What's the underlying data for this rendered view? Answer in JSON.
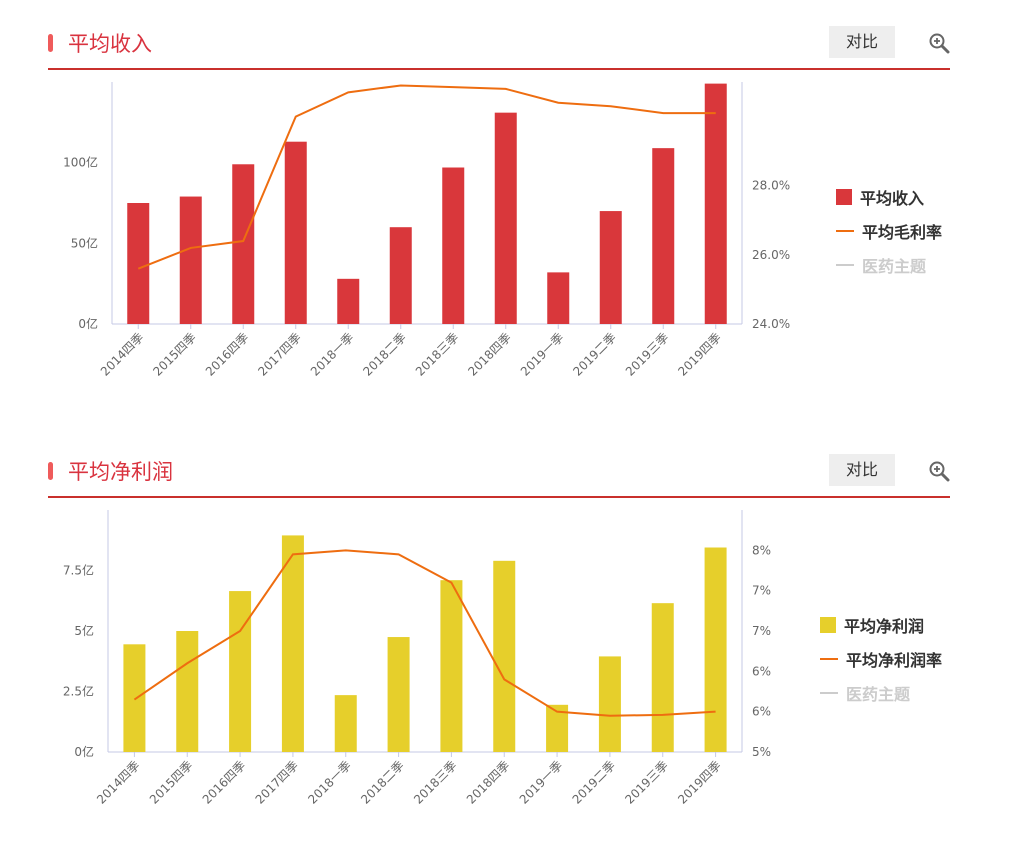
{
  "colors": {
    "revenue_bar": "#d9373b",
    "profit_bar": "#e6cf2b",
    "line": "#ee6d10",
    "title_red": "#d9333f",
    "rule": "#c9302c",
    "axis": "#c6c9e6",
    "disabled": "#cccccc"
  },
  "panels": [
    {
      "title": "平均收入",
      "compare_label": "对比",
      "zoom_icon": "zoom-in-icon",
      "legend": [
        {
          "label": "平均收入",
          "kind": "bar"
        },
        {
          "label": "平均毛利率",
          "kind": "line"
        },
        {
          "label": "医药主题",
          "kind": "line-disabled"
        }
      ],
      "left_ticks": [
        "0亿",
        "50亿",
        "100亿"
      ],
      "right_ticks": [
        "24.0%",
        "26.0%",
        "28.0%"
      ]
    },
    {
      "title": "平均净利润",
      "compare_label": "对比",
      "zoom_icon": "zoom-in-icon",
      "legend": [
        {
          "label": "平均净利润",
          "kind": "bar"
        },
        {
          "label": "平均净利润率",
          "kind": "line"
        },
        {
          "label": "医药主题",
          "kind": "line-disabled"
        }
      ],
      "left_ticks": [
        "0亿",
        "2.5亿",
        "5亿",
        "7.5亿"
      ],
      "right_ticks": [
        "5%",
        "6%",
        "6%",
        "7%",
        "7%",
        "8%"
      ]
    }
  ],
  "chart_data": [
    {
      "type": "bar",
      "title": "平均收入",
      "categories": [
        "2014四季",
        "2015四季",
        "2016四季",
        "2017四季",
        "2018一季",
        "2018二季",
        "2018三季",
        "2018四季",
        "2019一季",
        "2019二季",
        "2019三季",
        "2019四季"
      ],
      "series": [
        {
          "name": "平均收入",
          "type": "bar",
          "axis": "left",
          "unit": "亿",
          "values": [
            75,
            79,
            99,
            113,
            28,
            60,
            97,
            131,
            32,
            70,
            109,
            149
          ]
        },
        {
          "name": "平均毛利率",
          "type": "line",
          "axis": "right",
          "unit": "%",
          "values": [
            25.6,
            26.2,
            26.4,
            30.0,
            30.7,
            30.9,
            30.85,
            30.8,
            30.4,
            30.3,
            30.1,
            30.1
          ]
        }
      ],
      "y_left": {
        "min": 0,
        "max": 150,
        "ticks": [
          0,
          50,
          100
        ]
      },
      "y_right": {
        "min": 24.0,
        "max": 31.0,
        "ticks": [
          24.0,
          26.0,
          28.0
        ]
      },
      "grid": false,
      "legend_position": "right"
    },
    {
      "type": "bar",
      "title": "平均净利润",
      "categories": [
        "2014四季",
        "2015四季",
        "2016四季",
        "2017四季",
        "2018一季",
        "2018二季",
        "2018三季",
        "2018四季",
        "2019一季",
        "2019二季",
        "2019三季",
        "2019四季"
      ],
      "series": [
        {
          "name": "平均净利润",
          "type": "bar",
          "axis": "left",
          "unit": "亿",
          "values": [
            4.45,
            5.0,
            6.65,
            8.95,
            2.35,
            4.75,
            7.1,
            7.9,
            1.95,
            3.95,
            6.15,
            8.45
          ]
        },
        {
          "name": "平均净利润率",
          "type": "line",
          "axis": "right",
          "unit": "%",
          "values": [
            5.65,
            6.1,
            6.5,
            7.45,
            7.5,
            7.45,
            7.1,
            5.9,
            5.5,
            5.45,
            5.46,
            5.5
          ]
        }
      ],
      "y_left": {
        "min": 0,
        "max": 10,
        "ticks": [
          0,
          2.5,
          5,
          7.5
        ]
      },
      "y_right": {
        "min": 5.0,
        "max": 8.0,
        "ticks": [
          5.0,
          5.5,
          6.0,
          6.5,
          7.0,
          7.5
        ]
      },
      "grid": false,
      "legend_position": "right"
    }
  ]
}
